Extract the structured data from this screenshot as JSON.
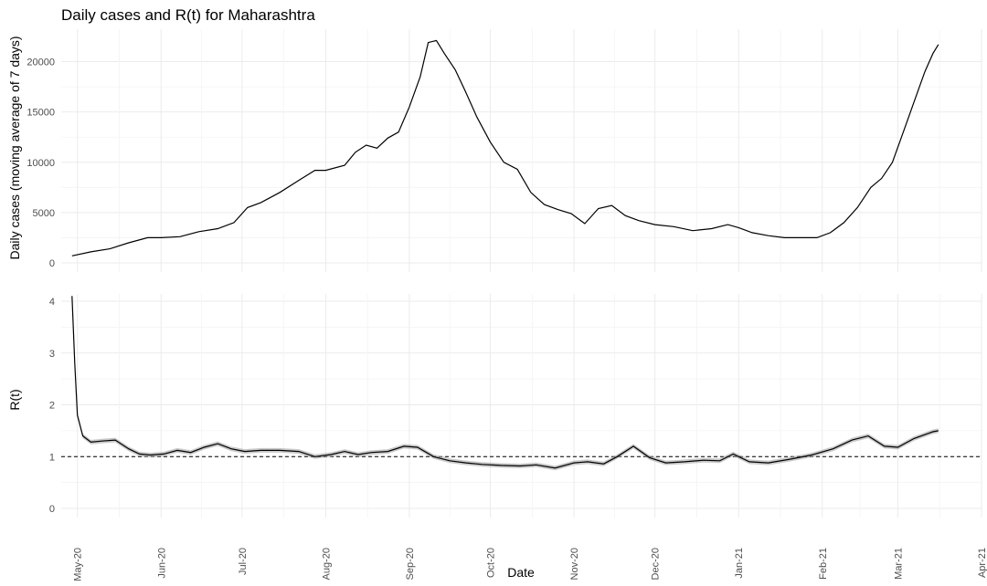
{
  "chart_data": [
    {
      "type": "line",
      "title": "Daily cases and R(t) for Maharashtra",
      "ylabel": "Daily cases (moving average of 7 days)",
      "xlabel": "",
      "ylim": [
        0,
        22500
      ],
      "yticks": [
        0,
        5000,
        10000,
        15000,
        20000
      ],
      "grid": true,
      "series": [
        {
          "x": [
            "2020-04-29",
            "2020-05-06",
            "2020-05-13",
            "2020-05-20",
            "2020-05-27",
            "2020-06-01",
            "2020-06-08",
            "2020-06-15",
            "2020-06-22",
            "2020-06-28",
            "2020-07-03",
            "2020-07-08",
            "2020-07-15",
            "2020-07-22",
            "2020-07-28",
            "2020-08-01",
            "2020-08-08",
            "2020-08-12",
            "2020-08-16",
            "2020-08-20",
            "2020-08-24",
            "2020-08-28",
            "2020-09-01",
            "2020-09-05",
            "2020-09-08",
            "2020-09-11",
            "2020-09-14",
            "2020-09-18",
            "2020-09-22",
            "2020-09-26",
            "2020-10-01",
            "2020-10-06",
            "2020-10-11",
            "2020-10-16",
            "2020-10-21",
            "2020-10-26",
            "2020-10-31",
            "2020-11-05",
            "2020-11-10",
            "2020-11-15",
            "2020-11-20",
            "2020-11-25",
            "2020-12-01",
            "2020-12-08",
            "2020-12-15",
            "2020-12-22",
            "2020-12-28",
            "2021-01-01",
            "2021-01-06",
            "2021-01-12",
            "2021-01-18",
            "2021-01-24",
            "2021-01-30",
            "2021-02-04",
            "2021-02-09",
            "2021-02-14",
            "2021-02-19",
            "2021-02-23",
            "2021-02-27",
            "2021-03-03",
            "2021-03-07",
            "2021-03-11",
            "2021-03-14",
            "2021-03-16"
          ],
          "values": [
            700,
            1100,
            1400,
            2000,
            2500,
            2500,
            2600,
            3100,
            3400,
            4000,
            5500,
            6000,
            7000,
            8200,
            9200,
            9200,
            9700,
            11000,
            11700,
            11400,
            12400,
            13000,
            15500,
            18500,
            21900,
            22100,
            20800,
            19200,
            16900,
            14500,
            12000,
            10000,
            9300,
            7000,
            5800,
            5300,
            4900,
            3900,
            5400,
            5700,
            4700,
            4200,
            3800,
            3600,
            3200,
            3400,
            3800,
            3500,
            3000,
            2700,
            2500,
            2500,
            2500,
            3000,
            4000,
            5500,
            7500,
            8400,
            10000,
            13000,
            16000,
            19000,
            20800,
            21700
          ]
        }
      ]
    },
    {
      "type": "line",
      "ylabel": "R(t)",
      "xlabel": "Date",
      "ylim": [
        0,
        4
      ],
      "yticks": [
        0,
        1,
        2,
        3,
        4
      ],
      "reference_line": 1,
      "grid": true,
      "x_tick_labels": [
        "May-20",
        "Jun-20",
        "Jul-20",
        "Aug-20",
        "Sep-20",
        "Oct-20",
        "Nov-20",
        "Dec-20",
        "Jan-21",
        "Feb-21",
        "Mar-21",
        "Apr-21"
      ],
      "x_range": [
        "2020-04-25",
        "2021-04-01"
      ],
      "series": [
        {
          "x": [
            "2020-04-29",
            "2020-04-30",
            "2020-05-01",
            "2020-05-03",
            "2020-05-06",
            "2020-05-10",
            "2020-05-15",
            "2020-05-20",
            "2020-05-24",
            "2020-05-28",
            "2020-06-02",
            "2020-06-07",
            "2020-06-12",
            "2020-06-17",
            "2020-06-22",
            "2020-06-27",
            "2020-07-02",
            "2020-07-08",
            "2020-07-15",
            "2020-07-22",
            "2020-07-28",
            "2020-08-03",
            "2020-08-08",
            "2020-08-13",
            "2020-08-18",
            "2020-08-24",
            "2020-08-30",
            "2020-09-04",
            "2020-09-10",
            "2020-09-16",
            "2020-09-22",
            "2020-09-28",
            "2020-10-05",
            "2020-10-12",
            "2020-10-18",
            "2020-10-25",
            "2020-11-01",
            "2020-11-06",
            "2020-11-12",
            "2020-11-17",
            "2020-11-23",
            "2020-11-29",
            "2020-12-05",
            "2020-12-12",
            "2020-12-19",
            "2020-12-25",
            "2020-12-30",
            "2021-01-05",
            "2021-01-12",
            "2021-01-20",
            "2021-01-28",
            "2021-02-05",
            "2021-02-12",
            "2021-02-18",
            "2021-02-24",
            "2021-03-01",
            "2021-03-07",
            "2021-03-14",
            "2021-03-16"
          ],
          "values": [
            4.1,
            2.8,
            1.8,
            1.4,
            1.28,
            1.3,
            1.32,
            1.15,
            1.05,
            1.03,
            1.05,
            1.12,
            1.08,
            1.18,
            1.25,
            1.15,
            1.1,
            1.12,
            1.12,
            1.1,
            1.0,
            1.04,
            1.1,
            1.04,
            1.08,
            1.1,
            1.2,
            1.18,
            1.0,
            0.92,
            0.88,
            0.85,
            0.83,
            0.82,
            0.84,
            0.78,
            0.88,
            0.9,
            0.86,
            1.0,
            1.2,
            0.98,
            0.88,
            0.9,
            0.93,
            0.92,
            1.05,
            0.9,
            0.88,
            0.95,
            1.03,
            1.15,
            1.32,
            1.4,
            1.2,
            1.18,
            1.35,
            1.48,
            1.5
          ]
        }
      ]
    }
  ]
}
